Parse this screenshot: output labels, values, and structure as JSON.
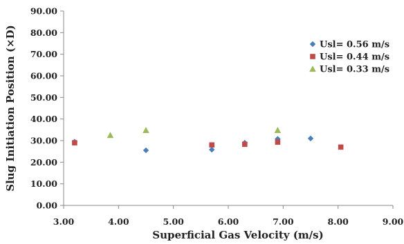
{
  "chart_data": {
    "type": "scatter",
    "xlabel": "Superficial Gas Velocity (m/s)",
    "ylabel": "Slug Initiation Position (×D)",
    "xlim": [
      3.0,
      9.0
    ],
    "ylim": [
      0.0,
      90.0
    ],
    "x_ticks": [
      "3.00",
      "4.00",
      "5.00",
      "6.00",
      "7.00",
      "8.00",
      "9.00"
    ],
    "y_ticks": [
      "0.00",
      "10.00",
      "20.00",
      "30.00",
      "40.00",
      "50.00",
      "60.00",
      "70.00",
      "80.00",
      "90.00"
    ],
    "grid": false,
    "legend_position": "top-right",
    "series": [
      {
        "name": "Usl= 0.56 m/s",
        "marker": "diamond",
        "color": "#4a7ebb",
        "points": [
          {
            "x": 3.2,
            "y": 29.5
          },
          {
            "x": 4.5,
            "y": 25.5
          },
          {
            "x": 5.7,
            "y": 25.8
          },
          {
            "x": 6.3,
            "y": 29.0
          },
          {
            "x": 6.9,
            "y": 30.8
          },
          {
            "x": 7.5,
            "y": 31.0
          }
        ]
      },
      {
        "name": "Usl= 0.44 m/s",
        "marker": "square",
        "color": "#be4b48",
        "points": [
          {
            "x": 3.2,
            "y": 29.0
          },
          {
            "x": 5.7,
            "y": 28.0
          },
          {
            "x": 6.3,
            "y": 28.3
          },
          {
            "x": 6.9,
            "y": 29.3
          },
          {
            "x": 8.05,
            "y": 27.0
          }
        ]
      },
      {
        "name": "Usl= 0.33 m/s",
        "marker": "triangle",
        "color": "#9bbb59",
        "points": [
          {
            "x": 3.85,
            "y": 32.5
          },
          {
            "x": 4.5,
            "y": 34.8
          },
          {
            "x": 6.9,
            "y": 34.8
          }
        ]
      }
    ]
  }
}
